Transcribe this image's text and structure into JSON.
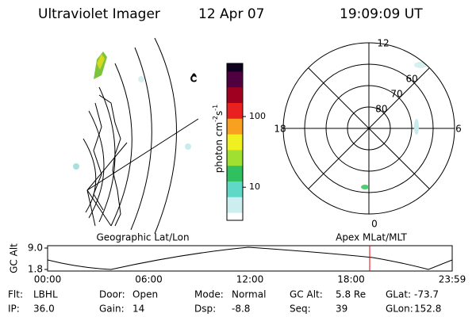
{
  "header": {
    "title": "Ultraviolet Imager",
    "date": "12 Apr 07",
    "time": "19:09:09 UT"
  },
  "colorbar": {
    "label": "photon cm",
    "exp1": "-2",
    "unit2": "s",
    "exp2": "-1",
    "log": true,
    "range": [
      3.4,
      565
    ],
    "ticks": [
      100,
      10
    ]
  },
  "polar": {
    "rings": [
      80,
      70,
      60,
      50
    ],
    "ring_labels": [
      60,
      70,
      80
    ],
    "clock_labels": [
      "12",
      "18",
      "6",
      "0"
    ]
  },
  "panels": {
    "left_label": "Geographic Lat/Lon",
    "right_label": "Apex MLat/MLT"
  },
  "altitude": {
    "axis_label": "GC Alt",
    "ylim": [
      1.8,
      9
    ],
    "yticks": [
      {
        "value": 9,
        "label": "9.0"
      },
      {
        "value": 1.8,
        "label": "1.8"
      }
    ],
    "time_labels": [
      "00:00",
      "06:00",
      "12:00",
      "18:00",
      "23:59"
    ]
  },
  "footer": [
    [
      {
        "label": "Flt:",
        "value": "LBHL"
      },
      {
        "label": "Door:",
        "value": "Open"
      },
      {
        "label": "Mode:",
        "value": "Normal"
      },
      {
        "label": "GC Alt:",
        "value": "5.8 Re"
      },
      {
        "label": "GLat:",
        "value": "-73.7"
      }
    ],
    [
      {
        "label": "IP:",
        "value": "36.0"
      },
      {
        "label": "Gain:",
        "value": "14"
      },
      {
        "label": "Dsp:",
        "value": "-8.8"
      },
      {
        "label": "Seq:",
        "value": "39"
      },
      {
        "label": "GLon:",
        "value": "152.8"
      }
    ]
  ]
}
